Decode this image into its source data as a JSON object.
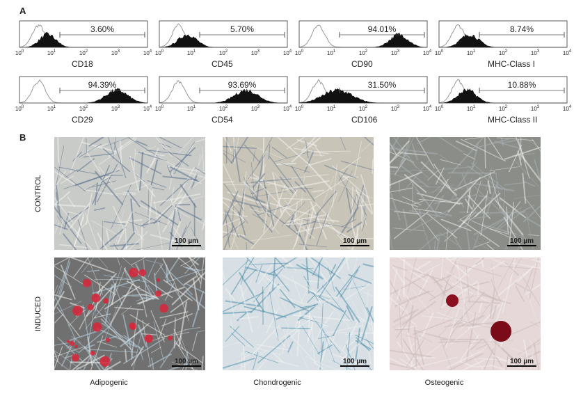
{
  "figure": {
    "panel_a": {
      "label": "A",
      "axis_ticks": [
        {
          "base": "10",
          "exponent": "0"
        },
        {
          "base": "10",
          "exponent": "1"
        },
        {
          "base": "10",
          "exponent": "2"
        },
        {
          "base": "10",
          "exponent": "3"
        },
        {
          "base": "10",
          "exponent": "4"
        }
      ],
      "histograms": [
        {
          "marker": "CD18",
          "percent": "3.60%"
        },
        {
          "marker": "CD45",
          "percent": "5.70%"
        },
        {
          "marker": "CD90",
          "percent": "94.01%"
        },
        {
          "marker": "MHC-Class I",
          "percent": "8.74%"
        },
        {
          "marker": "CD29",
          "percent": "94.39%"
        },
        {
          "marker": "CD54",
          "percent": "93.69%"
        },
        {
          "marker": "CD106",
          "percent": "31.50%"
        },
        {
          "marker": "MHC-Class II",
          "percent": "10.88%"
        }
      ]
    },
    "panel_b": {
      "label": "B",
      "rows": [
        "CONTROL",
        "INDUCED"
      ],
      "columns": [
        "Adipogenic",
        "Chondrogenic",
        "Osteogenic"
      ],
      "scale_bar": "100 µm"
    }
  }
}
